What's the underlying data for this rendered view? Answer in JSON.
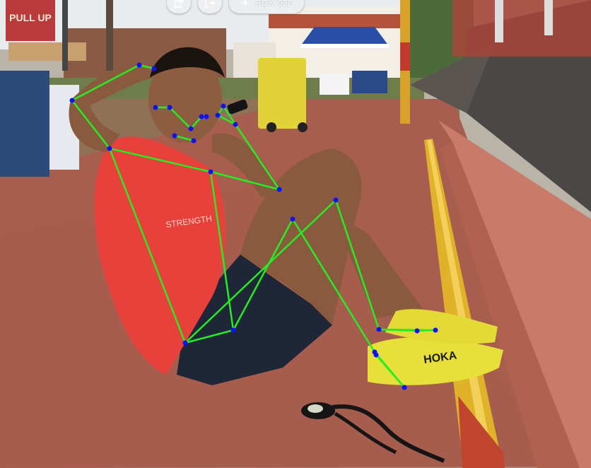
{
  "toolbar": {
    "buttons": [
      {
        "name": "share-icon",
        "label": ""
      },
      {
        "name": "exit-icon",
        "label": ""
      }
    ],
    "toggle": {
      "label": "RGX OFF",
      "icon": "sparkle-icon"
    }
  },
  "scene_text": {
    "banner": "PULL UP",
    "shirt_logo": "STRENGTH",
    "shoe_brand": "HOKA"
  },
  "pose_overlay": {
    "line_color": "#22ee22",
    "point_color": "#1010ff",
    "keypoints": [
      {
        "name": "nose",
        "label": ""
      }
    ]
  }
}
